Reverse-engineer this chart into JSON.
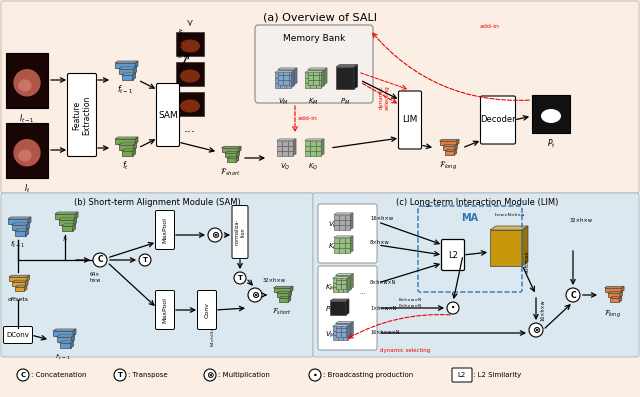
{
  "title_a": "(a) Overview of SALI",
  "title_b": "(b) Short-term Alignment Module (SAM)",
  "title_c": "(c) Long-term Interaction Module (LIM)",
  "bg_main": "#fbeee4",
  "bg_panel_a": "#fbeee4",
  "bg_panel_bc": "#dce8f0",
  "colors": {
    "blue_feat": "#5b9bd5",
    "green_feat": "#70ad47",
    "orange_feat": "#ed7d31",
    "yellow_feat": "#e8a020",
    "blue_mem": "#7ea6d0",
    "green_mem": "#92c47a",
    "blue_dark": "#2e75b6",
    "red": "#ee0000",
    "black": "#000000",
    "white": "#ffffff",
    "gold": "#c8960a",
    "gray_grid": "#aaaaaa",
    "dark_block": "#222222"
  }
}
